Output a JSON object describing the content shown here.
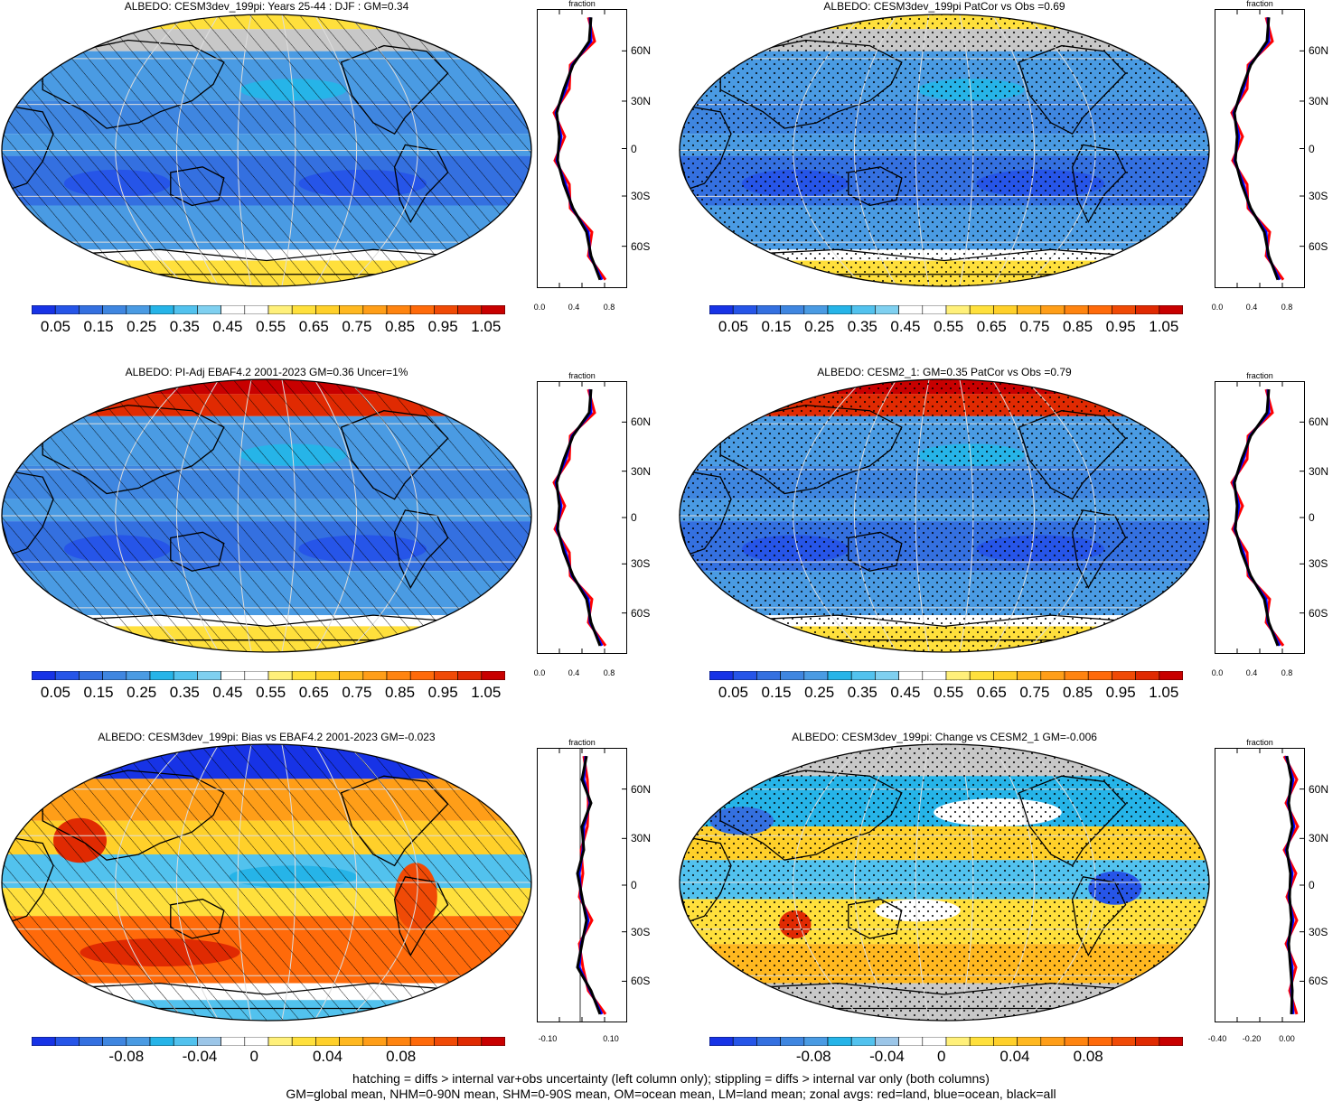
{
  "panels": [
    {
      "title": "ALBEDO: CESM3dev_199pi: Years 25-44 : DJF : GM=0.34",
      "pattern": "hatch",
      "scheme": "abs",
      "zonal_ticks": [
        "0.0",
        "0.4",
        "0.8"
      ],
      "zonal_header": "fraction",
      "colorbar_labels": [
        "0.05",
        "0.15",
        "0.25",
        "0.35",
        "0.45",
        "0.55",
        "0.65",
        "0.75",
        "0.85",
        "0.95",
        "1.05"
      ]
    },
    {
      "title": "ALBEDO: CESM3dev_199pi PatCor vs Obs =0.69",
      "pattern": "stipple",
      "scheme": "abs",
      "zonal_ticks": [
        "0.0",
        "0.4",
        "0.8"
      ],
      "zonal_header": "fraction",
      "colorbar_labels": [
        "0.05",
        "0.15",
        "0.25",
        "0.35",
        "0.45",
        "0.55",
        "0.65",
        "0.75",
        "0.85",
        "0.95",
        "1.05"
      ]
    },
    {
      "title": "ALBEDO: PI-Adj EBAF4.2 2001-2023 GM=0.36 Uncer=1%",
      "pattern": "hatch",
      "scheme": "obs",
      "zonal_ticks": [
        "0.0",
        "0.4",
        "0.8"
      ],
      "zonal_header": "fraction",
      "colorbar_labels": [
        "0.05",
        "0.15",
        "0.25",
        "0.35",
        "0.45",
        "0.55",
        "0.65",
        "0.75",
        "0.85",
        "0.95",
        "1.05"
      ]
    },
    {
      "title": "ALBEDO: CESM2_1: GM=0.35 PatCor vs Obs =0.79",
      "pattern": "stipple",
      "scheme": "obs",
      "zonal_ticks": [
        "0.0",
        "0.4",
        "0.8"
      ],
      "zonal_header": "fraction",
      "colorbar_labels": [
        "0.05",
        "0.15",
        "0.25",
        "0.35",
        "0.45",
        "0.55",
        "0.65",
        "0.75",
        "0.85",
        "0.95",
        "1.05"
      ]
    },
    {
      "title": "ALBEDO: CESM3dev_199pi: Bias vs EBAF4.2 2001-2023 GM=-0.023",
      "pattern": "hatch",
      "scheme": "bias",
      "zonal_ticks": [
        "-0.10",
        "0.10"
      ],
      "zonal_header": "fraction",
      "colorbar_labels": [
        "-0.08",
        "-0.04",
        "0",
        "0.04",
        "0.08"
      ]
    },
    {
      "title": "ALBEDO: CESM3dev_199pi: Change vs CESM2_1 GM=-0.006",
      "pattern": "stipple",
      "scheme": "change",
      "zonal_ticks": [
        "-0.40",
        "-0.20",
        "0.00"
      ],
      "zonal_header": "fraction",
      "colorbar_labels": [
        "-0.08",
        "-0.04",
        "0",
        "0.04",
        "0.08"
      ]
    }
  ],
  "latitude_labels": [
    "60N",
    "30N",
    "0",
    "30S",
    "60S"
  ],
  "colors": {
    "abs": [
      "#1733e6",
      "#2655e8",
      "#3470e0",
      "#3f86e0",
      "#4a9be3",
      "#26b4e8",
      "#52c2ee",
      "#7fd0f0",
      "#ffffff",
      "#ffffff",
      "#fff07a",
      "#ffe03c",
      "#ffd02a",
      "#ffb820",
      "#ff9e18",
      "#ff8410",
      "#ff6a0a",
      "#f04a06",
      "#e02a02",
      "#c80000"
    ],
    "diff": [
      "#1733e6",
      "#2655e8",
      "#3470e0",
      "#3f86e0",
      "#4a9be3",
      "#26b4e8",
      "#52c2ee",
      "#9cc6e8",
      "#ffffff",
      "#ffffff",
      "#fff07a",
      "#ffe03c",
      "#ffd02a",
      "#ffb820",
      "#ff9e18",
      "#ff8410",
      "#ff6a0a",
      "#f04a06",
      "#e02a02",
      "#c80000"
    ],
    "land_grey": "#c8c8c8",
    "zonal_land": "#ff0000",
    "zonal_ocean": "#0000ff",
    "zonal_all": "#000000"
  },
  "footer": {
    "line1": "hatching = diffs > internal var+obs uncertainty (left column only); stippling = diffs > internal var only (both columns)",
    "line2": "GM=global mean, NHM=0-90N mean, SHM=0-90S mean, OM=ocean mean, LM=land mean; zonal avgs: red=land, blue=ocean, black=all"
  }
}
